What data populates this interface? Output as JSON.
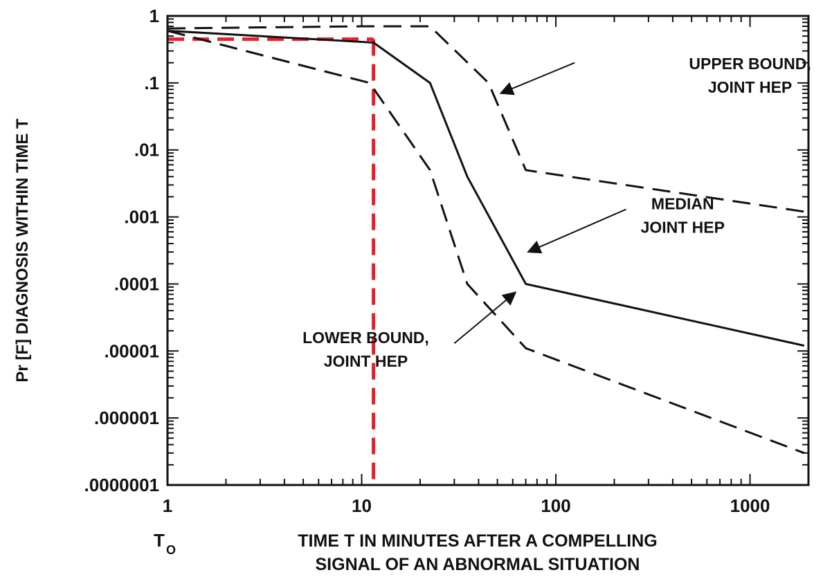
{
  "chart_data": {
    "type": "line",
    "title": "",
    "xlabel": [
      "TIME T IN MINUTES AFTER A COMPELLING",
      "SIGNAL OF AN ABNORMAL SITUATION"
    ],
    "ylabel": "Pr [F] DIAGNOSIS WITHIN TIME T",
    "x_scale": "log",
    "y_scale": "log",
    "xlim": [
      1,
      2000
    ],
    "ylim": [
      1e-07,
      1
    ],
    "x_ticks": [
      {
        "value": 1,
        "label": "1"
      },
      {
        "value": 10,
        "label": "10"
      },
      {
        "value": 100,
        "label": "100"
      },
      {
        "value": 1000,
        "label": "1000"
      }
    ],
    "y_ticks": [
      {
        "value": 1,
        "label": "1"
      },
      {
        "value": 0.1,
        "label": ".1"
      },
      {
        "value": 0.01,
        "label": ".01"
      },
      {
        "value": 0.001,
        "label": ".001"
      },
      {
        "value": 0.0001,
        "label": ".0001"
      },
      {
        "value": 1e-05,
        "label": ".00001"
      },
      {
        "value": 1e-06,
        "label": ".000001"
      },
      {
        "value": 1e-07,
        "label": ".0000001"
      }
    ],
    "t0_label": {
      "main": "T",
      "sub": "O"
    },
    "series": [
      {
        "name": "UPPER BOUND, JOINT HEP",
        "style": "dashed",
        "color": "#111111",
        "x": [
          1,
          10,
          22.5,
          45,
          70,
          1900
        ],
        "y": [
          0.65,
          0.7,
          0.7,
          0.1,
          0.005,
          0.0012
        ]
      },
      {
        "name": "MEDIAN JOINT HEP",
        "style": "solid",
        "color": "#111111",
        "x": [
          1,
          11.5,
          22.5,
          35,
          70,
          1900
        ],
        "y": [
          0.6,
          0.4,
          0.1,
          0.004,
          0.0001,
          1.2e-05
        ]
      },
      {
        "name": "LOWER BOUND, JOINT HEP",
        "style": "dashed",
        "color": "#111111",
        "x": [
          1,
          11,
          22.5,
          35,
          70,
          1900
        ],
        "y": [
          0.6,
          0.1,
          0.005,
          0.0001,
          1.1e-05,
          3e-07
        ]
      }
    ],
    "reference_lines": {
      "color": "#e8202a",
      "x": 11.5,
      "y": 0.45
    },
    "annotations": [
      {
        "lines": [
          "UPPER BOUND,",
          "JOINT HEP"
        ],
        "text_x": 1000,
        "text_y": 0.16,
        "anchor": "middle",
        "arrow_from": [
          125,
          0.2
        ],
        "arrow_to": [
          52,
          0.07
        ]
      },
      {
        "lines": [
          "MEDIAN",
          "JOINT HEP"
        ],
        "text_x": 450,
        "text_y": 0.0013,
        "anchor": "middle",
        "arrow_from": [
          230,
          0.0013
        ],
        "arrow_to": [
          72,
          0.0003
        ]
      },
      {
        "lines": [
          "LOWER BOUND,",
          "JOINT HEP"
        ],
        "text_x": 10.5,
        "text_y": 1.3e-05,
        "anchor": "middle",
        "arrow_from": [
          30,
          1.3e-05
        ],
        "arrow_to": [
          62,
          7.5e-05
        ]
      }
    ]
  }
}
